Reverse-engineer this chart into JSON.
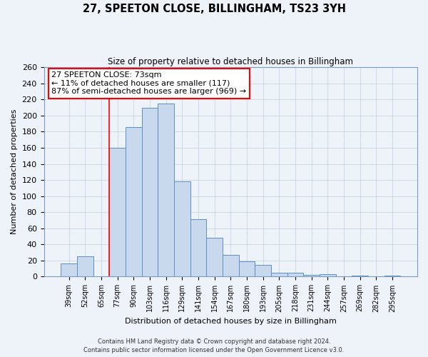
{
  "title": "27, SPEETON CLOSE, BILLINGHAM, TS23 3YH",
  "subtitle": "Size of property relative to detached houses in Billingham",
  "xlabel": "Distribution of detached houses by size in Billingham",
  "ylabel": "Number of detached properties",
  "footer_lines": [
    "Contains HM Land Registry data © Crown copyright and database right 2024.",
    "Contains public sector information licensed under the Open Government Licence v3.0."
  ],
  "bin_labels": [
    "39sqm",
    "52sqm",
    "65sqm",
    "77sqm",
    "90sqm",
    "103sqm",
    "116sqm",
    "129sqm",
    "141sqm",
    "154sqm",
    "167sqm",
    "180sqm",
    "193sqm",
    "205sqm",
    "218sqm",
    "231sqm",
    "244sqm",
    "257sqm",
    "269sqm",
    "282sqm",
    "295sqm"
  ],
  "bar_heights": [
    16,
    25,
    0,
    160,
    186,
    210,
    215,
    118,
    71,
    48,
    27,
    19,
    15,
    5,
    5,
    2,
    3,
    0,
    1,
    0,
    1
  ],
  "bar_color": "#c9d9ed",
  "bar_edge_color": "#5b8fc9",
  "ylim": [
    0,
    260
  ],
  "yticks": [
    0,
    20,
    40,
    60,
    80,
    100,
    120,
    140,
    160,
    180,
    200,
    220,
    240,
    260
  ],
  "red_line_bin_index": 2.5,
  "annotation_title": "27 SPEETON CLOSE: 73sqm",
  "annotation_line1": "← 11% of detached houses are smaller (117)",
  "annotation_line2": "87% of semi-detached houses are larger (969) →",
  "background_color": "#eef2f9"
}
